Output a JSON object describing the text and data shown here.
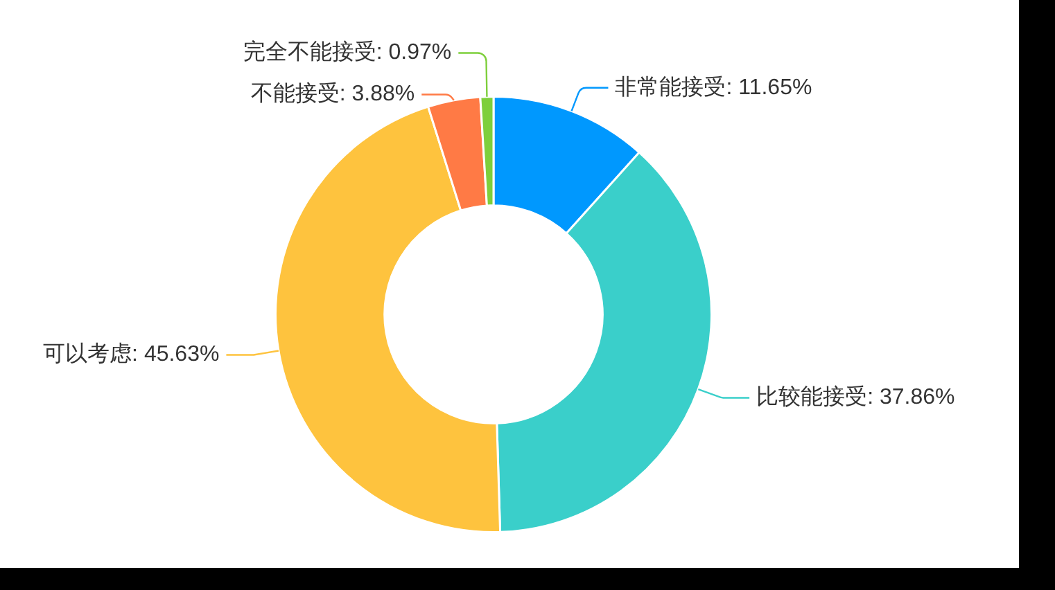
{
  "chart_data": {
    "type": "donut",
    "categories": [
      "非常能接受",
      "比较能接受",
      "可以考虑",
      "不能接受",
      "完全不能接受"
    ],
    "values": [
      11.65,
      37.86,
      45.63,
      3.88,
      0.97
    ],
    "colors": [
      "#0098fe",
      "#3acfca",
      "#fec33e",
      "#ff7a45",
      "#7ecf3c"
    ],
    "value_labels": [
      "11.65%",
      "37.86%",
      "45.63%",
      "3.88%",
      "0.97%"
    ]
  }
}
